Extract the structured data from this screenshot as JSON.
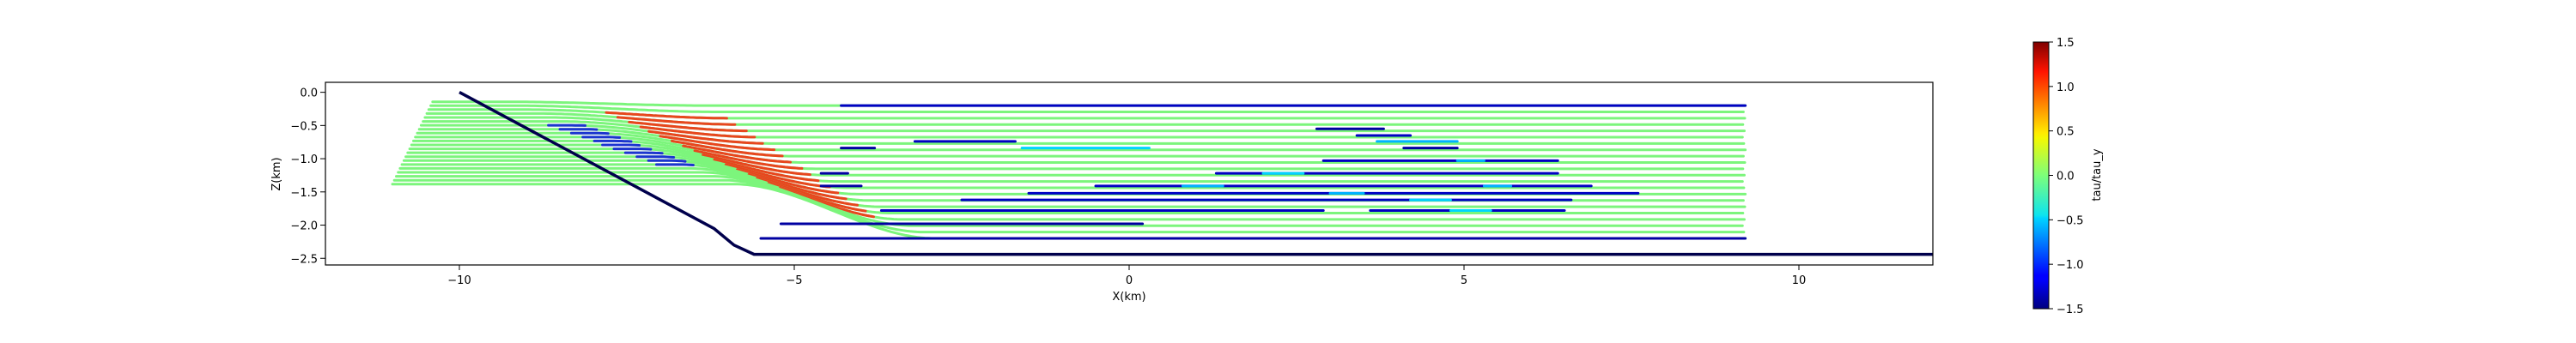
{
  "chart_data": {
    "type": "line",
    "title": "",
    "xlabel": "X(km)",
    "ylabel": "Z(km)",
    "xlim": [
      -12,
      12
    ],
    "ylim": [
      -2.6,
      0.15
    ],
    "xticks": [
      -10,
      -5,
      0,
      5,
      10
    ],
    "yticks": [
      0.0,
      -0.5,
      -1.0,
      -1.5,
      -2.0,
      -2.5
    ],
    "xtick_labels": [
      "−10",
      "−5",
      "0",
      "5",
      "10"
    ],
    "ytick_labels": [
      "0.0",
      "−0.5",
      "−1.0",
      "−1.5",
      "−2.0",
      "−2.5"
    ],
    "grid": false,
    "colorbar": {
      "label": "tau/tau_y",
      "colormap": "jet",
      "range": [
        -1.5,
        1.5
      ],
      "ticks": [
        1.5,
        1.0,
        0.5,
        0.0,
        -0.5,
        -1.0,
        -1.5
      ],
      "tick_labels": [
        "1.5",
        "1.0",
        "0.5",
        "0.0",
        "−0.5",
        "−1.0",
        "−1.5"
      ]
    },
    "boundary": {
      "name": "",
      "color": "#00004c",
      "points": [
        [
          -10.0,
          0.0
        ],
        [
          -6.2,
          -2.05
        ],
        [
          -5.9,
          -2.3
        ],
        [
          -5.6,
          -2.44
        ],
        [
          12.0,
          -2.44
        ]
      ]
    },
    "layers": {
      "count": 22,
      "z_top": -0.2,
      "z_bottom": -2.2,
      "x_start": -11.0,
      "x_end": 9.2,
      "ramp_x_at_top": -7.8,
      "ramp_x_at_bottom": -4.4,
      "ramp_width": 3.0,
      "colors": {
        "undeformed": "#7cf57c",
        "high_stress": "#e8461e",
        "low_stress": "#1c34d0",
        "mid_stress": "#40d4f0"
      }
    },
    "stress_segments": [
      {
        "z": -0.2,
        "x": [
          -4.3,
          9.2
        ],
        "value": -1.3
      },
      {
        "z": -0.74,
        "x": [
          -3.2,
          -1.7
        ],
        "value": -1.3
      },
      {
        "z": -0.74,
        "x": [
          3.7,
          4.9
        ],
        "value": -0.6
      },
      {
        "z": -0.55,
        "x": [
          2.8,
          3.8
        ],
        "value": -1.4
      },
      {
        "z": -0.65,
        "x": [
          3.4,
          4.2
        ],
        "value": -1.3
      },
      {
        "z": -0.84,
        "x": [
          -4.3,
          -3.8
        ],
        "value": -1.4
      },
      {
        "z": -0.84,
        "x": [
          -1.6,
          0.3
        ],
        "value": -0.5
      },
      {
        "z": -0.84,
        "x": [
          4.1,
          4.9
        ],
        "value": -1.4
      },
      {
        "z": -1.03,
        "x": [
          2.9,
          6.4
        ],
        "value": -1.3
      },
      {
        "z": -1.03,
        "x": [
          4.9,
          5.3
        ],
        "value": -0.6
      },
      {
        "z": -1.22,
        "x": [
          -4.6,
          -4.2
        ],
        "value": -1.4
      },
      {
        "z": -1.22,
        "x": [
          1.3,
          6.4
        ],
        "value": -1.3
      },
      {
        "z": -1.22,
        "x": [
          2.0,
          2.6
        ],
        "value": -0.5
      },
      {
        "z": -1.41,
        "x": [
          -4.6,
          -4.0
        ],
        "value": -1.4
      },
      {
        "z": -1.41,
        "x": [
          -0.5,
          6.9
        ],
        "value": -1.3
      },
      {
        "z": -1.41,
        "x": [
          0.8,
          1.4
        ],
        "value": -0.6
      },
      {
        "z": -1.41,
        "x": [
          5.3,
          5.7
        ],
        "value": -0.6
      },
      {
        "z": -1.52,
        "x": [
          -1.5,
          7.6
        ],
        "value": -1.3
      },
      {
        "z": -1.52,
        "x": [
          3.0,
          3.5
        ],
        "value": -0.6
      },
      {
        "z": -1.62,
        "x": [
          -2.5,
          6.6
        ],
        "value": -1.3
      },
      {
        "z": -1.62,
        "x": [
          4.2,
          4.8
        ],
        "value": -0.5
      },
      {
        "z": -1.78,
        "x": [
          -3.7,
          2.9
        ],
        "value": -1.3
      },
      {
        "z": -1.78,
        "x": [
          3.6,
          6.5
        ],
        "value": -1.3
      },
      {
        "z": -1.78,
        "x": [
          4.8,
          5.4
        ],
        "value": -0.5
      },
      {
        "z": -1.98,
        "x": [
          -5.2,
          0.2
        ],
        "value": -1.4
      },
      {
        "z": -2.2,
        "x": [
          -5.5,
          9.2
        ],
        "value": -1.4
      }
    ]
  }
}
